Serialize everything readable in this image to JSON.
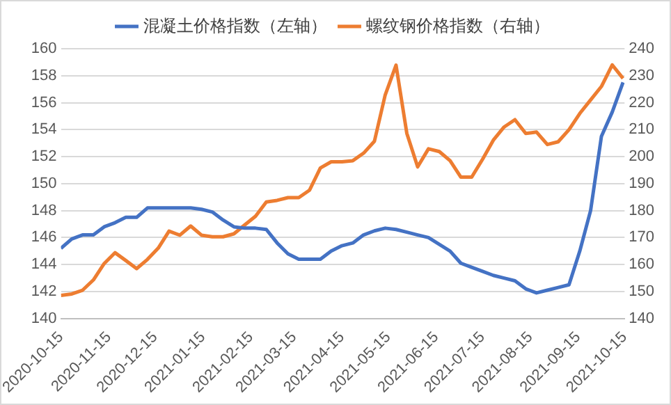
{
  "chart_data": {
    "type": "line",
    "x": [
      "2020-10-15",
      "2020-10-22",
      "2020-10-29",
      "2020-11-05",
      "2020-11-12",
      "2020-11-19",
      "2020-11-26",
      "2020-12-03",
      "2020-12-10",
      "2020-12-17",
      "2020-12-24",
      "2020-12-31",
      "2021-01-07",
      "2021-01-14",
      "2021-01-21",
      "2021-01-28",
      "2021-02-04",
      "2021-02-11",
      "2021-02-18",
      "2021-02-25",
      "2021-03-04",
      "2021-03-11",
      "2021-03-18",
      "2021-03-25",
      "2021-04-01",
      "2021-04-08",
      "2021-04-15",
      "2021-04-22",
      "2021-04-29",
      "2021-05-06",
      "2021-05-13",
      "2021-05-20",
      "2021-05-27",
      "2021-06-03",
      "2021-06-10",
      "2021-06-17",
      "2021-06-24",
      "2021-07-01",
      "2021-07-08",
      "2021-07-15",
      "2021-07-22",
      "2021-07-29",
      "2021-08-05",
      "2021-08-12",
      "2021-08-19",
      "2021-08-26",
      "2021-09-02",
      "2021-09-09",
      "2021-09-16",
      "2021-09-23",
      "2021-09-30",
      "2021-10-07",
      "2021-10-14"
    ],
    "series": [
      {
        "name": "混凝土价格指数（左轴）",
        "color": "#4472c4",
        "values": [
          145.2,
          145.9,
          146.2,
          146.2,
          146.8,
          147.1,
          147.5,
          147.5,
          148.2,
          148.2,
          148.2,
          148.2,
          148.2,
          148.1,
          147.9,
          147.3,
          146.8,
          146.7,
          146.7,
          146.6,
          145.6,
          144.8,
          144.4,
          144.4,
          144.4,
          145.0,
          145.4,
          145.6,
          146.2,
          146.5,
          146.7,
          146.6,
          146.4,
          146.2,
          146.0,
          145.5,
          145.0,
          144.1,
          143.8,
          143.5,
          143.2,
          143.0,
          142.8,
          142.2,
          141.9,
          142.1,
          142.3,
          142.5,
          145.0,
          148.0,
          153.5,
          155.3,
          157.5
        ]
      },
      {
        "name": "螺纹钢价格指数（右轴）",
        "color": "#ed7d31",
        "axis": "y2",
        "values": [
          148.6,
          149.1,
          150.5,
          154.3,
          160.4,
          164.4,
          161.5,
          158.5,
          161.9,
          166.1,
          172.4,
          170.9,
          174.3,
          170.9,
          170.3,
          170.3,
          171.4,
          174.7,
          177.9,
          183.2,
          183.8,
          184.8,
          184.8,
          187.6,
          195.8,
          198.1,
          198.1,
          198.5,
          201.3,
          205.7,
          222.9,
          233.9,
          208.6,
          196.2,
          202.9,
          201.9,
          198.5,
          192.4,
          192.4,
          199.0,
          206.1,
          211.0,
          213.7,
          208.6,
          209.1,
          204.5,
          205.5,
          210,
          216,
          221,
          226,
          234,
          229
        ]
      }
    ],
    "xlim": [
      "2020-10-15",
      "2021-10-15"
    ],
    "xticks": [
      "2020-10-15",
      "2020-11-15",
      "2020-12-15",
      "2021-01-15",
      "2021-02-15",
      "2021-03-15",
      "2021-04-15",
      "2021-05-15",
      "2021-06-15",
      "2021-07-15",
      "2021-08-15",
      "2021-09-15",
      "2021-10-15"
    ],
    "ylim": [
      140,
      160
    ],
    "yticks": [
      140,
      142,
      144,
      146,
      148,
      150,
      152,
      154,
      156,
      158,
      160
    ],
    "y2lim": [
      140,
      240
    ],
    "y2ticks": [
      140,
      150,
      160,
      170,
      180,
      190,
      200,
      210,
      220,
      230,
      240
    ],
    "grid": "y",
    "legend": "top",
    "marker": "none",
    "line_style": "solid"
  }
}
